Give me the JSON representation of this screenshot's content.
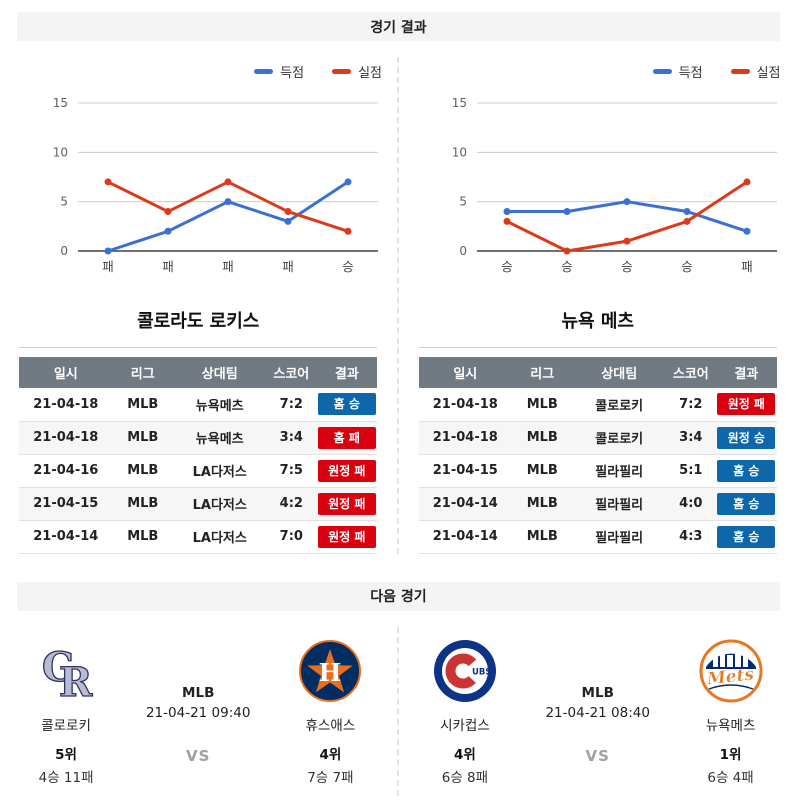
{
  "header": {
    "results": "경기 결과",
    "next": "다음 경기"
  },
  "colors": {
    "win_badge": "#0d67aa",
    "loss_badge": "#da0010",
    "table_header_bg": "#717a82",
    "score_line": "#3c6fd6",
    "concede_line": "#dd3a1b"
  },
  "chart_data": [
    {
      "type": "line",
      "team": "콜로라도 로키스",
      "categories": [
        "패",
        "패",
        "패",
        "패",
        "승"
      ],
      "series": [
        {
          "name": "득점",
          "color": "#3c6fd6",
          "values": [
            0,
            2,
            5,
            3,
            7
          ]
        },
        {
          "name": "실점",
          "color": "#dd3a1b",
          "values": [
            7,
            4,
            7,
            4,
            2
          ]
        }
      ],
      "ylim": [
        0,
        15
      ],
      "yticks": [
        0,
        5,
        10,
        15
      ],
      "grid": true,
      "legend_position": "top-right"
    },
    {
      "type": "line",
      "team": "뉴욕 메츠",
      "categories": [
        "승",
        "승",
        "승",
        "승",
        "패"
      ],
      "series": [
        {
          "name": "득점",
          "color": "#3c6fd6",
          "values": [
            4,
            4,
            5,
            4,
            2
          ]
        },
        {
          "name": "실점",
          "color": "#dd3a1b",
          "values": [
            3,
            0,
            1,
            3,
            7
          ]
        }
      ],
      "ylim": [
        0,
        15
      ],
      "yticks": [
        0,
        5,
        10,
        15
      ],
      "grid": true,
      "legend_position": "top-right"
    }
  ],
  "teams": [
    {
      "title": "콜로라도 로키스",
      "table": {
        "columns": [
          "일시",
          "리그",
          "상대팀",
          "스코어",
          "결과"
        ],
        "rows": [
          {
            "date": "21-04-18",
            "league": "MLB",
            "opponent": "뉴욕메츠",
            "score": "7:2",
            "result": "홈 승",
            "result_type": "win"
          },
          {
            "date": "21-04-18",
            "league": "MLB",
            "opponent": "뉴욕메츠",
            "score": "3:4",
            "result": "홈 패",
            "result_type": "loss"
          },
          {
            "date": "21-04-16",
            "league": "MLB",
            "opponent": "LA다저스",
            "score": "7:5",
            "result": "원정 패",
            "result_type": "loss"
          },
          {
            "date": "21-04-15",
            "league": "MLB",
            "opponent": "LA다저스",
            "score": "4:2",
            "result": "원정 패",
            "result_type": "loss"
          },
          {
            "date": "21-04-14",
            "league": "MLB",
            "opponent": "LA다저스",
            "score": "7:0",
            "result": "원정 패",
            "result_type": "loss"
          }
        ]
      }
    },
    {
      "title": "뉴욕 메츠",
      "table": {
        "columns": [
          "일시",
          "리그",
          "상대팀",
          "스코어",
          "결과"
        ],
        "rows": [
          {
            "date": "21-04-18",
            "league": "MLB",
            "opponent": "콜로로키",
            "score": "7:2",
            "result": "원정 패",
            "result_type": "loss"
          },
          {
            "date": "21-04-18",
            "league": "MLB",
            "opponent": "콜로로키",
            "score": "3:4",
            "result": "원정 승",
            "result_type": "win"
          },
          {
            "date": "21-04-15",
            "league": "MLB",
            "opponent": "필라필리",
            "score": "5:1",
            "result": "홈 승",
            "result_type": "win"
          },
          {
            "date": "21-04-14",
            "league": "MLB",
            "opponent": "필라필리",
            "score": "4:0",
            "result": "홈 승",
            "result_type": "win"
          },
          {
            "date": "21-04-14",
            "league": "MLB",
            "opponent": "필라필리",
            "score": "4:3",
            "result": "홈 승",
            "result_type": "win"
          }
        ]
      }
    }
  ],
  "next": {
    "vs": "VS",
    "matches": [
      {
        "league": "MLB",
        "datetime": "21-04-21 09:40",
        "home": {
          "name": "콜로로키",
          "rank": "5위",
          "record": "4승 11패",
          "logo": "rockies-logo"
        },
        "away": {
          "name": "휴스애스",
          "rank": "4위",
          "record": "7승 7패",
          "logo": "astros-logo"
        }
      },
      {
        "league": "MLB",
        "datetime": "21-04-21 08:40",
        "home": {
          "name": "시카컵스",
          "rank": "4위",
          "record": "6승 8패",
          "logo": "cubs-logo"
        },
        "away": {
          "name": "뉴욕메츠",
          "rank": "1위",
          "record": "6승 4패",
          "logo": "mets-logo"
        }
      }
    ]
  }
}
